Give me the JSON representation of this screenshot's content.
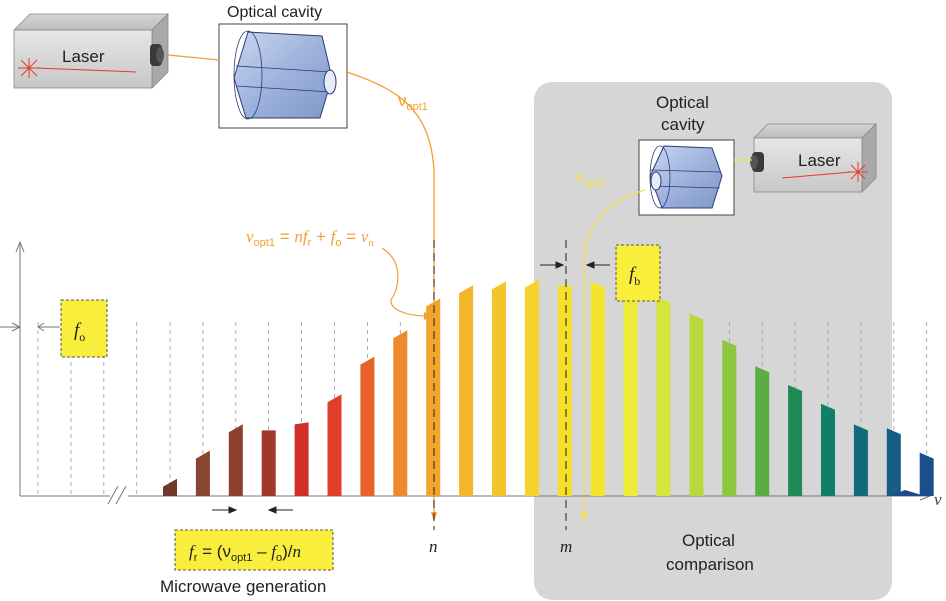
{
  "left_laser": {
    "label": "Laser"
  },
  "left_cavity": {
    "label": "Optical cavity"
  },
  "right_laser": {
    "label": "Laser"
  },
  "right_cavity": {
    "label_line1": "Optical",
    "label_line2": "cavity"
  },
  "nu_opt1": {
    "symbol": "ν",
    "subscript": "opt1"
  },
  "nu_opt2": {
    "symbol": "ν",
    "subscript": "opt2"
  },
  "comb_equation": {
    "parts": [
      "ν",
      "opt1",
      " = ",
      "n",
      "f",
      "r",
      " + ",
      "f",
      "o",
      " = ",
      "ν",
      "n"
    ]
  },
  "fo_box": {
    "italic": "f",
    "sub": "o"
  },
  "fb_box": {
    "italic": "f",
    "sub": "b"
  },
  "fr_box": {
    "parts": [
      "f",
      "r",
      " = (ν",
      "opt1",
      " – ",
      "f",
      "o",
      ")/",
      "n"
    ]
  },
  "microwave_label": "Microwave generation",
  "optical_comparison": {
    "line1": "Optical",
    "line2": "comparison"
  },
  "axis": {
    "x_symbol": "ν",
    "n_label": "n",
    "m_label": "m"
  },
  "colors": {
    "orange_beam": "#f0a030",
    "yellow_beam": "#f5e04a",
    "panel_gray": "#d6d6d6",
    "label_box": "#f9ee3c"
  },
  "comb_heights": [
    0.07,
    0.22,
    0.36,
    0.37,
    0.37,
    0.52,
    0.72,
    0.86,
    1.03,
    1.1,
    1.12,
    1.13,
    1.14,
    1.13,
    1.1,
    1.05,
    0.96,
    0.82,
    0.68,
    0.58,
    0.48,
    0.37,
    0.35,
    0.22
  ]
}
